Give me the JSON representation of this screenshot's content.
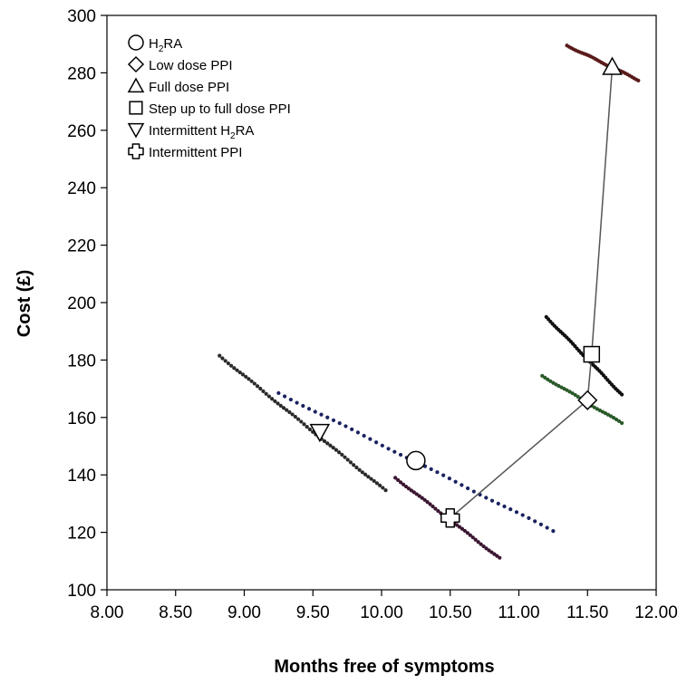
{
  "chart_data": {
    "type": "scatter",
    "title": "",
    "xlabel": "Months free of symptoms",
    "ylabel": "Cost (£)",
    "xlim": [
      8.0,
      12.0
    ],
    "ylim": [
      100,
      300
    ],
    "x_ticks": [
      "8.00",
      "8.50",
      "9.00",
      "9.50",
      "10.00",
      "10.50",
      "11.00",
      "11.50",
      "12.00"
    ],
    "y_ticks": [
      "100",
      "120",
      "140",
      "160",
      "180",
      "200",
      "220",
      "240",
      "260",
      "280",
      "300"
    ],
    "grid": false,
    "legend_position": "top-left",
    "frontier": [
      {
        "x": 10.5,
        "y": 125
      },
      {
        "x": 11.5,
        "y": 166
      },
      {
        "x": 11.53,
        "y": 182
      },
      {
        "x": 11.68,
        "y": 282
      }
    ],
    "series": [
      {
        "name": "H2RA",
        "legend": [
          "H",
          "2",
          "RA"
        ],
        "marker": "circle",
        "point": {
          "x": 10.25,
          "y": 145
        },
        "cloud": {
          "x0": 9.25,
          "y0": 168.5,
          "x1": 11.25,
          "y1": 120.5,
          "color": "#1a2360",
          "n": 46
        }
      },
      {
        "name": "Low dose PPI",
        "legend": [
          "Low dose PPI"
        ],
        "marker": "diamond",
        "point": {
          "x": 11.5,
          "y": 166
        },
        "cloud": {
          "x0": 11.17,
          "y0": 174.5,
          "x1": 11.75,
          "y1": 158,
          "color": "#2a5a2a",
          "n": 30
        }
      },
      {
        "name": "Full dose PPI",
        "legend": [
          "Full dose PPI"
        ],
        "marker": "triangle-up",
        "point": {
          "x": 11.68,
          "y": 282
        },
        "cloud": {
          "x0": 11.35,
          "y0": 289.5,
          "x1": 11.87,
          "y1": 277.5,
          "color": "#5a1a1a",
          "n": 34
        }
      },
      {
        "name": "Step up to full dose PPI",
        "legend": [
          "Step up to full dose PPI"
        ],
        "marker": "square",
        "point": {
          "x": 11.53,
          "y": 182
        },
        "cloud": {
          "x0": 11.2,
          "y0": 195,
          "x1": 11.75,
          "y1": 168,
          "color": "#111111",
          "n": 38
        }
      },
      {
        "name": "Intermittent H2RA",
        "legend": [
          "Intermittent H",
          "2",
          "RA"
        ],
        "marker": "triangle-down",
        "point": {
          "x": 9.55,
          "y": 155
        },
        "cloud": {
          "x0": 8.82,
          "y0": 181.5,
          "x1": 10.03,
          "y1": 134.5,
          "color": "#2a2a2a",
          "n": 58
        }
      },
      {
        "name": "Intermittent PPI",
        "legend": [
          "Intermittent PPI"
        ],
        "marker": "cross",
        "point": {
          "x": 10.5,
          "y": 125
        },
        "cloud": {
          "x0": 10.1,
          "y0": 139,
          "x1": 10.86,
          "y1": 111,
          "color": "#3a1530",
          "n": 40
        }
      }
    ]
  }
}
